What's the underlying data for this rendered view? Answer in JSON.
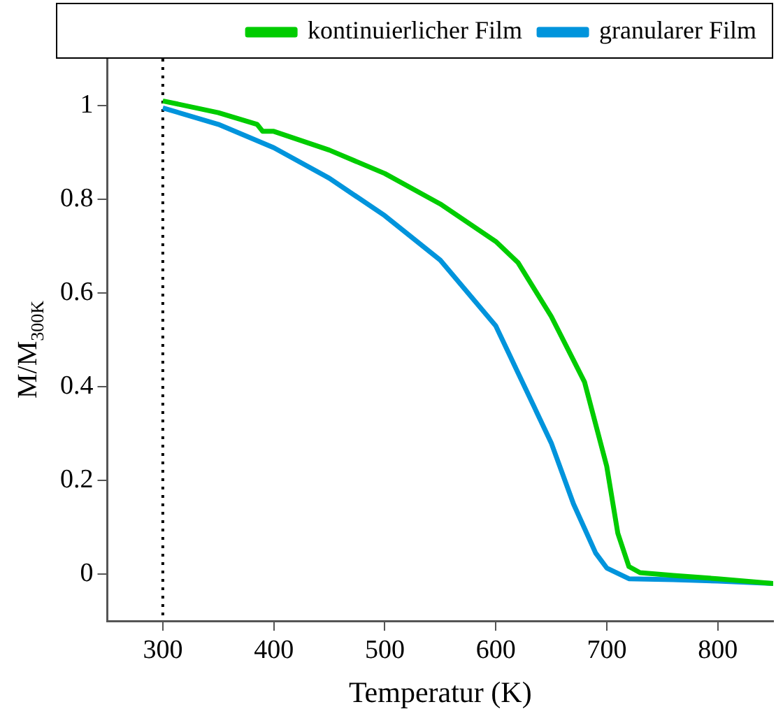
{
  "chart_data": {
    "type": "line",
    "xlabel": "Temperatur (K)",
    "ylabel": "M/M$_{300K}$",
    "xlim": [
      250,
      850
    ],
    "xticks": [
      300,
      400,
      500,
      600,
      700,
      800
    ],
    "ylim": [
      -0.1,
      1.1
    ],
    "yticks": [
      0,
      0.2,
      0.4,
      0.6,
      0.8,
      1
    ],
    "grid": false,
    "legend": "top",
    "marker": "none",
    "line_style": "solid",
    "ref_lines": [
      {
        "axis": "x",
        "value": 300,
        "line_style": "dotted",
        "color": "#000000"
      }
    ],
    "series": [
      {
        "name": "kontinuierlicher Film",
        "color": "#00cc00",
        "x": [
          300,
          350,
          385,
          390,
          400,
          450,
          500,
          550,
          600,
          620,
          650,
          680,
          700,
          710,
          720,
          730,
          760,
          800,
          850
        ],
        "values": [
          1.01,
          0.985,
          0.96,
          0.945,
          0.945,
          0.905,
          0.855,
          0.79,
          0.71,
          0.665,
          0.55,
          0.41,
          0.23,
          0.087,
          0.016,
          0.003,
          -0.003,
          -0.01,
          -0.02
        ]
      },
      {
        "name": "granularer Film",
        "color": "#0094dc",
        "x": [
          300,
          350,
          400,
          450,
          500,
          550,
          600,
          620,
          650,
          670,
          690,
          700,
          720,
          760,
          800,
          850
        ],
        "values": [
          0.995,
          0.96,
          0.91,
          0.845,
          0.765,
          0.67,
          0.53,
          0.43,
          0.28,
          0.15,
          0.045,
          0.013,
          -0.01,
          -0.012,
          -0.015,
          -0.02
        ]
      }
    ]
  }
}
